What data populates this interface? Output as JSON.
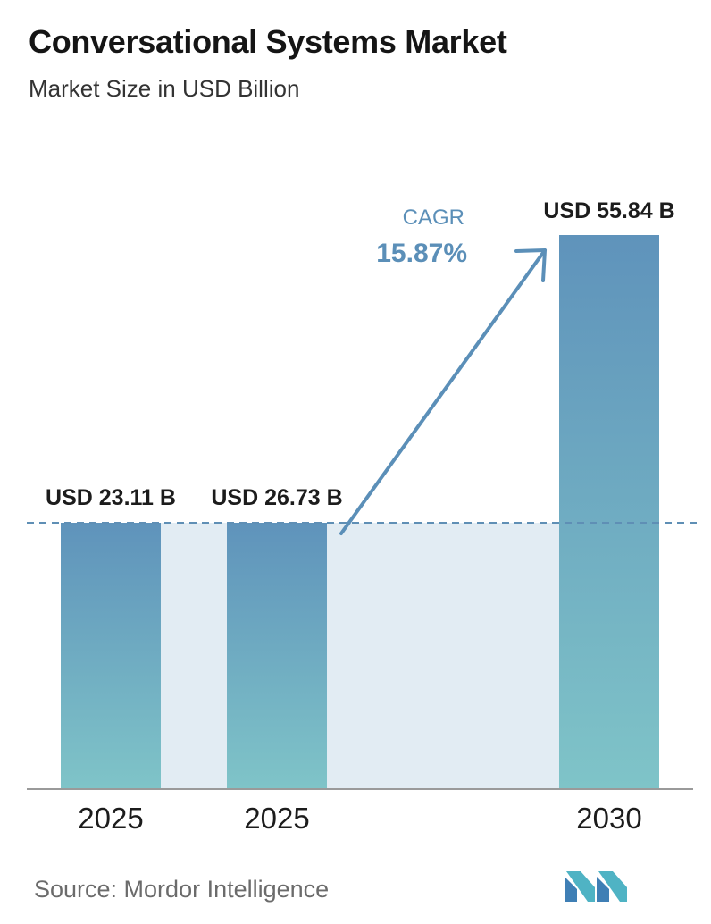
{
  "header": {
    "title": "Conversational Systems Market",
    "subtitle": "Market Size in USD Billion"
  },
  "chart_data": {
    "type": "bar",
    "categories": [
      "2025",
      "2025",
      "2030"
    ],
    "values": [
      23.11,
      26.73,
      55.84
    ],
    "value_labels": [
      "USD 23.11 B",
      "USD 26.73 B",
      "USD 55.84 B"
    ],
    "title": "Conversational Systems Market",
    "subtitle": "Market Size in USD Billion",
    "xlabel": "",
    "ylabel": "",
    "ylim": [
      0,
      55.84
    ],
    "grid": false,
    "annotation": {
      "label": "CAGR",
      "value": "15.87%"
    },
    "colors": {
      "bar_top": "#5f93bb",
      "bar_bottom": "#7fc4c8",
      "band": "#e2ecf3",
      "accent": "#5b8fb8",
      "baseline": "#9a9a9a"
    }
  },
  "footer": {
    "source": "Source:  Mordor Intelligence",
    "logo_icon": "mordor-intelligence-logo-icon"
  }
}
